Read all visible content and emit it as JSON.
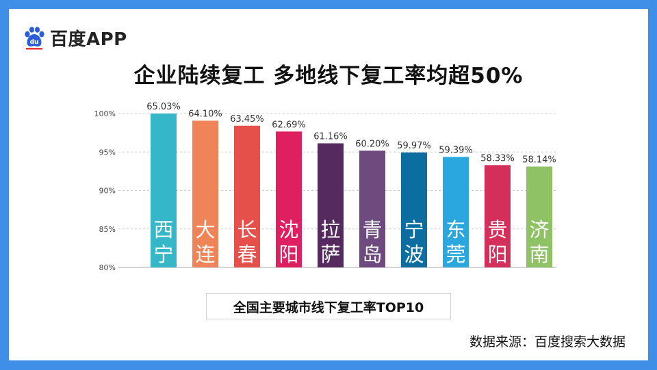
{
  "brand": {
    "name": "百度APP",
    "icon": "baidu-paw-icon",
    "mark": "du",
    "color": "#2b5fd9"
  },
  "title": "企业陆续复工 多地线下复工率均超50%",
  "caption": "全国主要城市线下复工率TOP10",
  "source": "数据来源：百度搜索大数据",
  "chart_data": {
    "type": "bar",
    "title": "全国主要城市线下复工率TOP10",
    "xlabel": "",
    "ylabel": "",
    "ylim": [
      80,
      100
    ],
    "yticks": [
      "100%",
      "95%",
      "90%",
      "85%",
      "80%"
    ],
    "ytick_values": [
      100,
      95,
      90,
      85,
      80
    ],
    "grid": "dashed-horizontal",
    "categories": [
      "西宁",
      "大连",
      "长春",
      "沈阳",
      "拉萨",
      "青岛",
      "宁波",
      "东莞",
      "贵阳",
      "济南"
    ],
    "category_lines": [
      [
        "西",
        "宁"
      ],
      [
        "大",
        "连"
      ],
      [
        "长",
        "春"
      ],
      [
        "沈",
        "阳"
      ],
      [
        "拉",
        "萨"
      ],
      [
        "青",
        "岛"
      ],
      [
        "宁",
        "波"
      ],
      [
        "东",
        "莞"
      ],
      [
        "贵",
        "阳"
      ],
      [
        "济",
        "南"
      ]
    ],
    "values": [
      65.03,
      64.1,
      63.45,
      62.69,
      61.16,
      60.2,
      59.97,
      59.39,
      58.33,
      58.14
    ],
    "value_labels": [
      "65.03%",
      "64.10%",
      "63.45%",
      "62.69%",
      "61.16%",
      "60.20%",
      "59.97%",
      "59.39%",
      "58.33%",
      "58.14%"
    ],
    "colors": [
      "#36b6c9",
      "#ee8457",
      "#e6504a",
      "#de2060",
      "#552a5e",
      "#6e4a7e",
      "#0b6da0",
      "#2aa7de",
      "#d42e5a",
      "#8fc265"
    ]
  }
}
